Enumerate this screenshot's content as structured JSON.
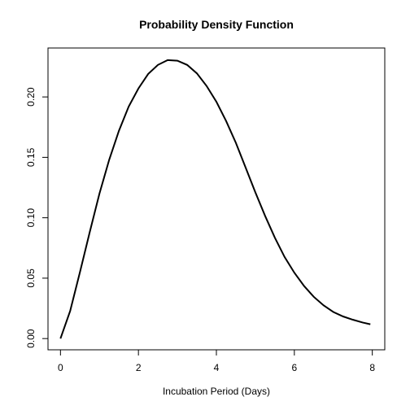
{
  "chart_data": {
    "type": "line",
    "title": "Probability Density Function",
    "xlabel": "Incubation Period (Days)",
    "ylabel": "",
    "xlim": [
      -0.32,
      8.32
    ],
    "ylim": [
      -0.0093,
      0.2405
    ],
    "x_ticks": [
      0,
      2,
      4,
      6,
      8
    ],
    "x_tick_labels": [
      "0",
      "2",
      "4",
      "6",
      "8"
    ],
    "y_ticks": [
      0,
      0.05,
      0.1,
      0.15,
      0.2
    ],
    "y_tick_labels": [
      "0.00",
      "0.05",
      "0.10",
      "0.15",
      "0.20"
    ],
    "grid": false,
    "series": [
      {
        "x": [
          0,
          0.25,
          0.5,
          0.75,
          1,
          1.25,
          1.5,
          1.75,
          2,
          2.25,
          2.5,
          2.75,
          3,
          3.25,
          3.5,
          3.75,
          4,
          4.25,
          4.5,
          4.75,
          5,
          5.25,
          5.5,
          5.75,
          6,
          6.25,
          6.5,
          6.75,
          7,
          7.25,
          7.5,
          7.75,
          7.95
        ],
        "y": [
          0.0,
          0.023,
          0.055,
          0.088,
          0.12,
          0.148,
          0.172,
          0.192,
          0.207,
          0.219,
          0.2265,
          0.2305,
          0.23,
          0.2265,
          0.2195,
          0.209,
          0.196,
          0.18,
          0.162,
          0.1415,
          0.121,
          0.1015,
          0.0835,
          0.0675,
          0.0545,
          0.0435,
          0.0345,
          0.0275,
          0.022,
          0.0183,
          0.0156,
          0.0133,
          0.0118
        ],
        "color": "#000000"
      }
    ]
  }
}
